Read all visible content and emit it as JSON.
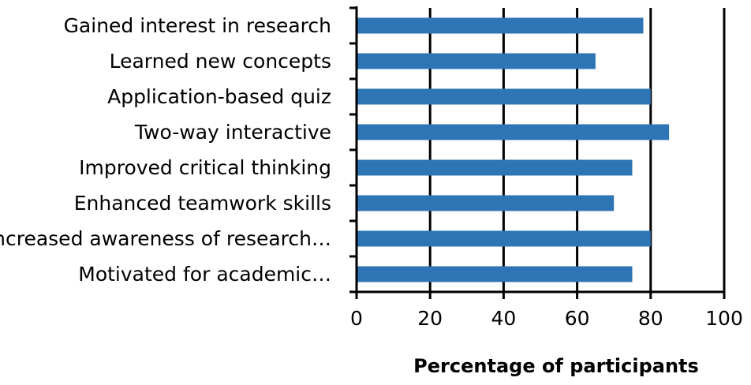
{
  "chart_data": {
    "type": "bar",
    "orientation": "horizontal",
    "categories": [
      "Gained interest in research",
      "Learned new concepts",
      "Application-based quiz",
      "Two-way interactive",
      "Improved critical thinking",
      "Enhanced teamwork skills",
      "Increased awareness of research…",
      "Motivated for academic…"
    ],
    "values": [
      78,
      65,
      80,
      85,
      75,
      70,
      80,
      75
    ],
    "xlabel": "Percentage of participants",
    "ylabel": "",
    "xlim": [
      0,
      100
    ],
    "xticks": [
      0,
      20,
      40,
      60,
      80,
      100
    ],
    "xtick_labels": [
      "0",
      "20",
      "40",
      "60",
      "80",
      "100"
    ],
    "grid": "vertical major gridlines",
    "legend": "none",
    "colors": {
      "bar": "#2e75b6",
      "grid": "#000000",
      "axis": "#000000",
      "background": "#ffffff"
    }
  }
}
